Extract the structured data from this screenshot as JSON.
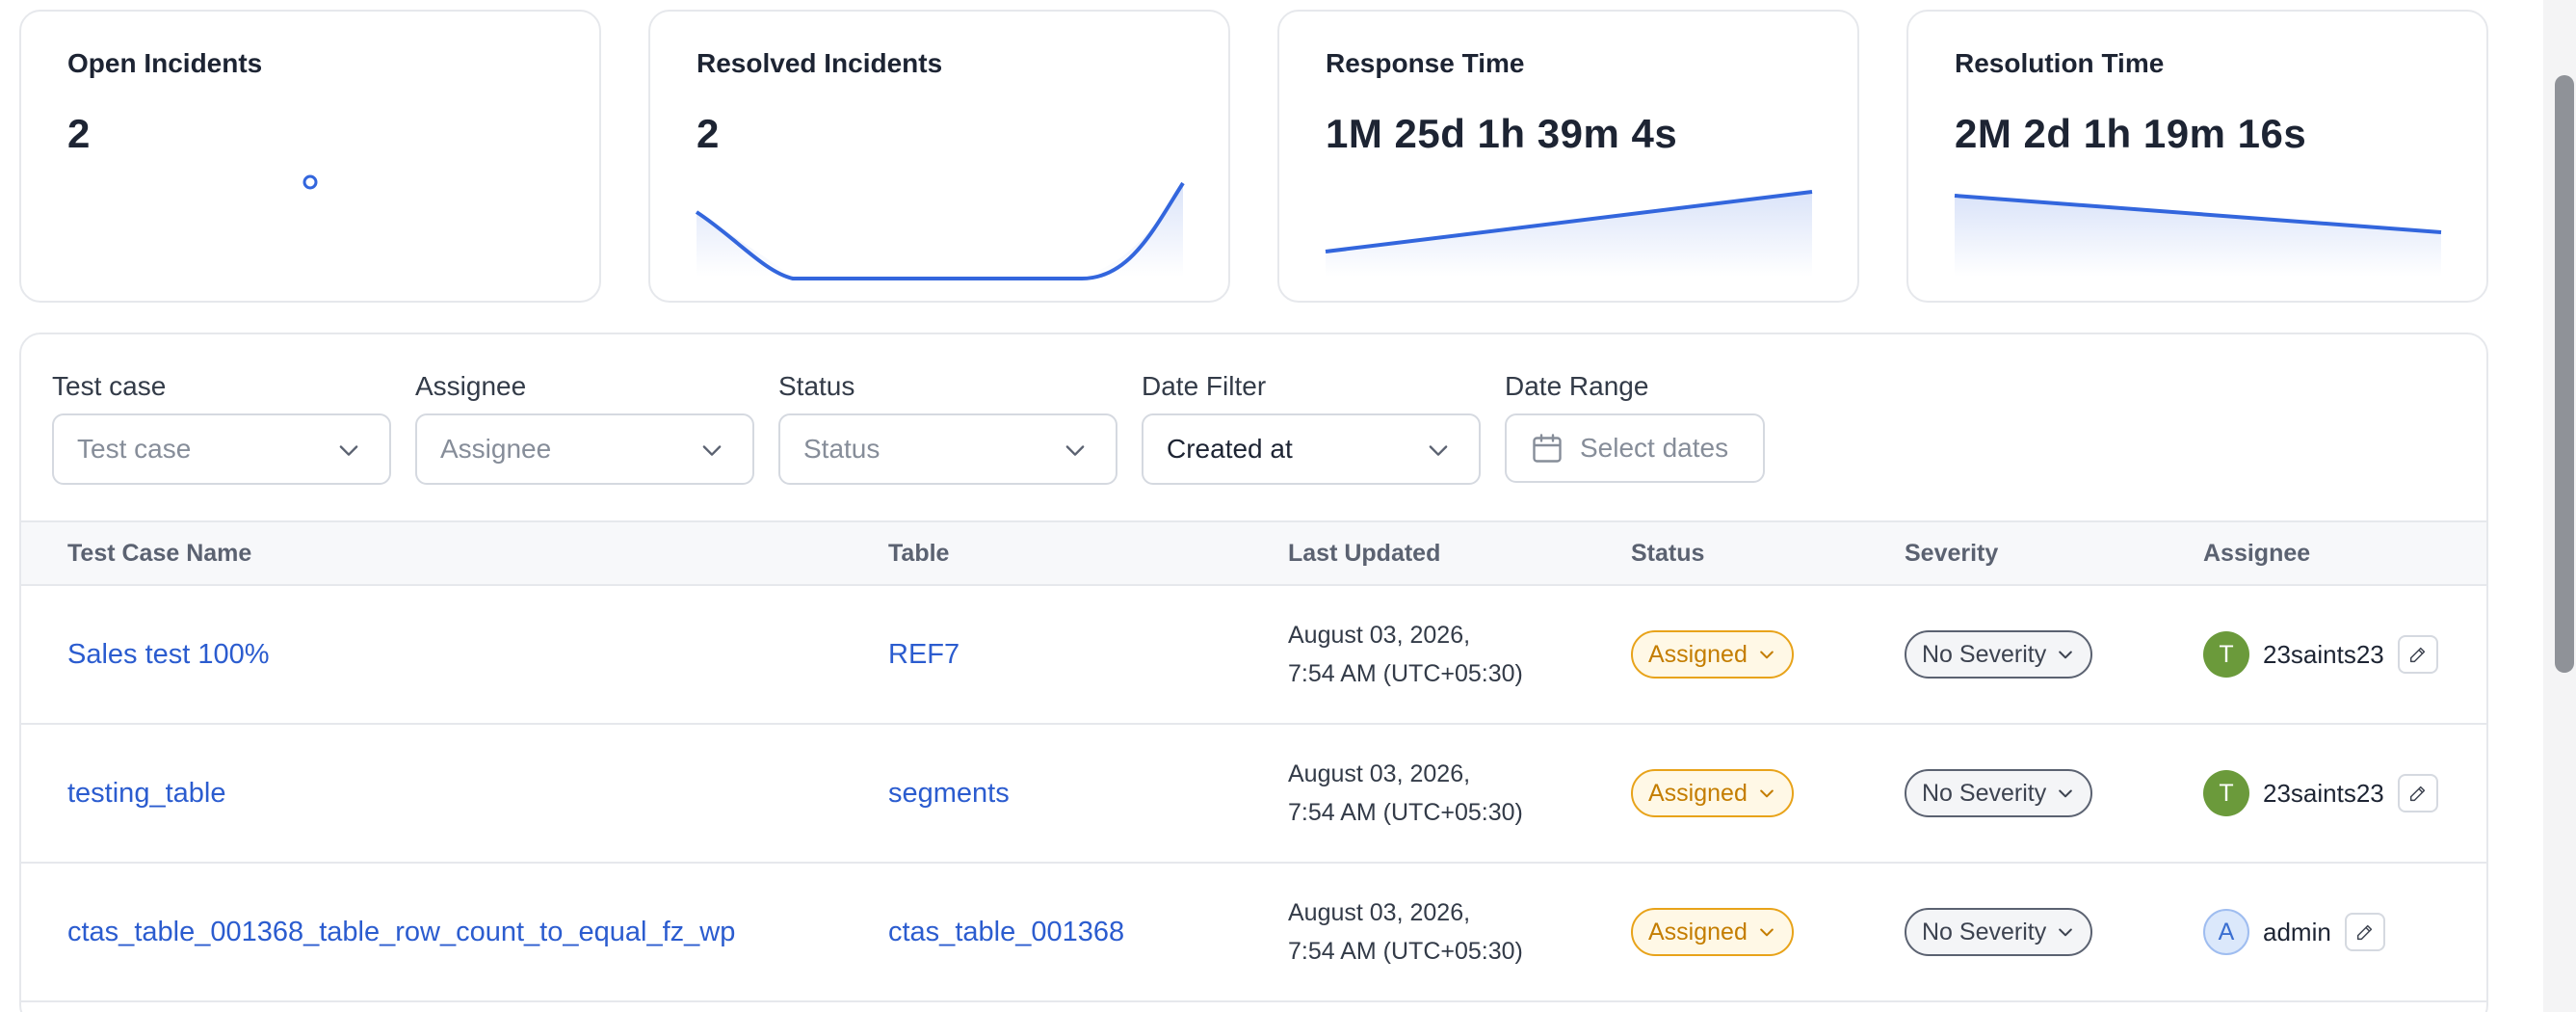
{
  "cards": [
    {
      "title": "Open Incidents",
      "value": "2"
    },
    {
      "title": "Resolved Incidents",
      "value": "2"
    },
    {
      "title": "Response Time",
      "value": "1M 25d 1h 39m 4s"
    },
    {
      "title": "Resolution Time",
      "value": "2M 2d 1h 19m 16s"
    }
  ],
  "filters": {
    "test_case": {
      "label": "Test case",
      "placeholder": "Test case"
    },
    "assignee": {
      "label": "Assignee",
      "placeholder": "Assignee"
    },
    "status": {
      "label": "Status",
      "placeholder": "Status"
    },
    "date_filter": {
      "label": "Date Filter",
      "value": "Created at"
    },
    "date_range": {
      "label": "Date Range",
      "placeholder": "Select dates"
    }
  },
  "table": {
    "columns": [
      "Test Case Name",
      "Table",
      "Last Updated",
      "Status",
      "Severity",
      "Assignee"
    ],
    "rows": [
      {
        "name": "Sales test 100%",
        "table": "REF7",
        "date_line1": "August 03, 2026,",
        "date_line2": "7:54 AM (UTC+05:30)",
        "status": "Assigned",
        "severity": "No Severity",
        "avatar": "T",
        "assignee": "23saints23"
      },
      {
        "name": "testing_table",
        "table": "segments",
        "date_line1": "August 03, 2026,",
        "date_line2": "7:54 AM (UTC+05:30)",
        "status": "Assigned",
        "severity": "No Severity",
        "avatar": "T",
        "assignee": "23saints23"
      },
      {
        "name": "ctas_table_001368_table_row_count_to_equal_fz_wp",
        "table": "ctas_table_001368",
        "date_line1": "August 03, 2026,",
        "date_line2": "7:54 AM (UTC+05:30)",
        "status": "Assigned",
        "severity": "No Severity",
        "avatar": "A",
        "assignee": "admin"
      }
    ]
  },
  "colors": {
    "accent": "#2b5ccf",
    "status_assigned": "#e8a31a",
    "avatar_green": "#6b9a3b"
  },
  "icons": {
    "dropdown": "chevron-down-icon",
    "date_range": "calendar-icon",
    "edit": "pencil-icon"
  }
}
